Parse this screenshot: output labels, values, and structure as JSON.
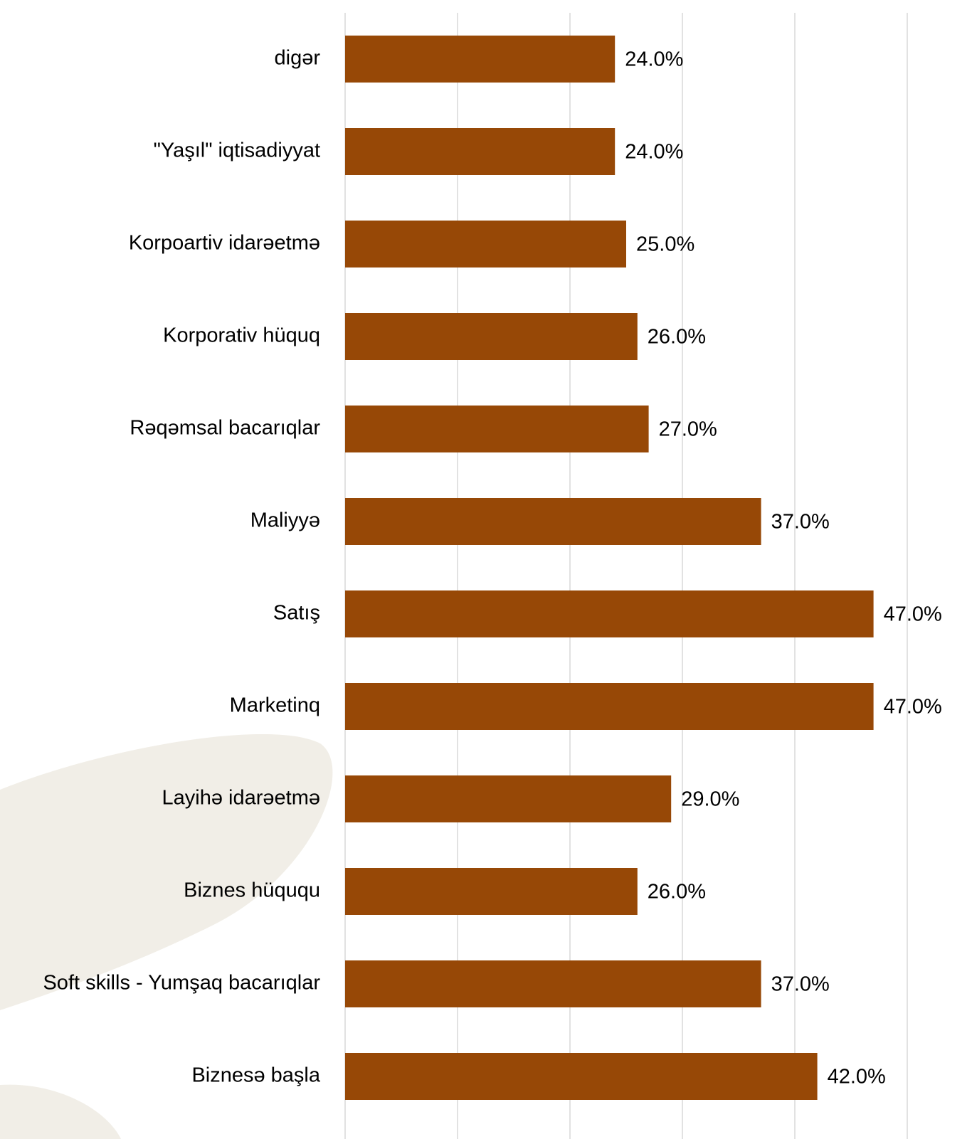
{
  "chart_data": {
    "type": "bar",
    "orientation": "horizontal",
    "categories": [
      "digər",
      "\"Yaşıl\" iqtisadiyyat",
      "Korpoartiv idarəetmə",
      "Korporativ hüquq",
      "Rəqəmsal bacarıqlar",
      "Maliyyə",
      "Satış",
      "Marketinq",
      "Layihə idarəetmə",
      "Biznes hüququ",
      "Soft skills - Yumşaq bacarıqlar",
      "Biznesə başla"
    ],
    "values": [
      24,
      24,
      25,
      26,
      27,
      37,
      47,
      47,
      29,
      26,
      37,
      42
    ],
    "value_labels": [
      "24.0%",
      "24.0%",
      "25.0%",
      "26.0%",
      "27.0%",
      "37.0%",
      "47.0%",
      "47.0%",
      "29.0%",
      "26.0%",
      "37.0%",
      "42.0%"
    ],
    "color": "#974806",
    "xlim": [
      0,
      50
    ],
    "xticks": [
      0,
      10,
      20,
      30,
      40,
      50
    ],
    "grid": true
  }
}
